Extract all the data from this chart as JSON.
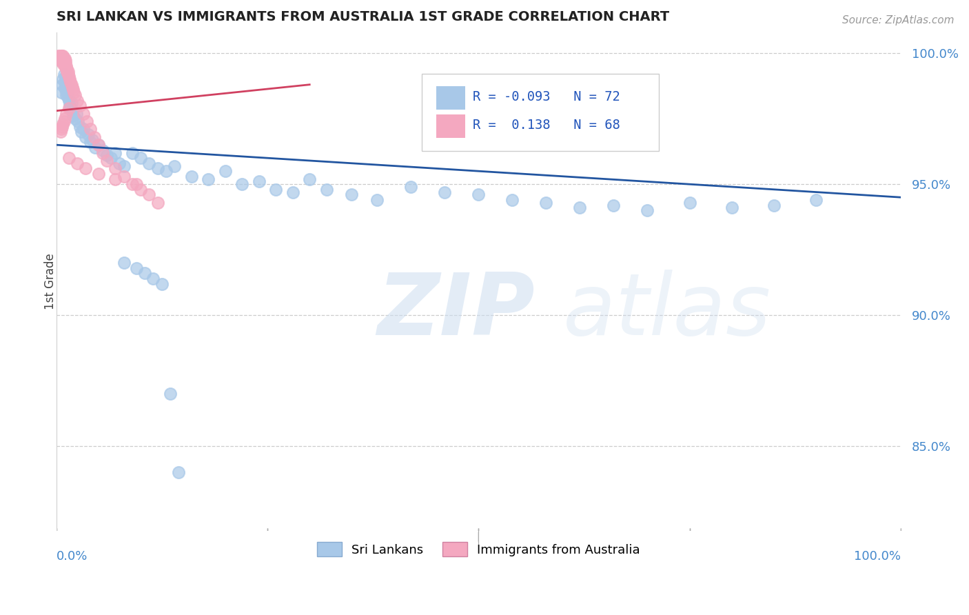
{
  "title": "SRI LANKAN VS IMMIGRANTS FROM AUSTRALIA 1ST GRADE CORRELATION CHART",
  "source": "Source: ZipAtlas.com",
  "ylabel": "1st Grade",
  "xlim": [
    0.0,
    1.0
  ],
  "ylim": [
    0.818,
    1.008
  ],
  "yticks": [
    0.85,
    0.9,
    0.95,
    1.0
  ],
  "ytick_labels": [
    "85.0%",
    "90.0%",
    "95.0%",
    "100.0%"
  ],
  "blue_R": "-0.093",
  "blue_N": "72",
  "pink_R": "0.138",
  "pink_N": "68",
  "blue_color": "#a8c8e8",
  "pink_color": "#f4a8c0",
  "blue_line_color": "#2255a0",
  "pink_line_color": "#d04060",
  "legend_label_blue": "Sri Lankans",
  "legend_label_pink": "Immigrants from Australia",
  "blue_x": [
    0.006,
    0.007,
    0.008,
    0.009,
    0.01,
    0.01,
    0.011,
    0.011,
    0.012,
    0.013,
    0.014,
    0.014,
    0.015,
    0.016,
    0.017,
    0.018,
    0.019,
    0.02,
    0.022,
    0.024,
    0.026,
    0.028,
    0.03,
    0.032,
    0.035,
    0.038,
    0.04,
    0.043,
    0.046,
    0.05,
    0.055,
    0.06,
    0.065,
    0.07,
    0.075,
    0.08,
    0.09,
    0.1,
    0.11,
    0.12,
    0.13,
    0.14,
    0.16,
    0.18,
    0.2,
    0.22,
    0.24,
    0.26,
    0.28,
    0.3,
    0.32,
    0.35,
    0.38,
    0.42,
    0.46,
    0.5,
    0.54,
    0.58,
    0.62,
    0.66,
    0.7,
    0.75,
    0.8,
    0.85,
    0.9,
    0.08,
    0.095,
    0.105,
    0.115,
    0.125,
    0.135,
    0.145
  ],
  "blue_y": [
    0.985,
    0.988,
    0.99,
    0.992,
    0.989,
    0.987,
    0.991,
    0.986,
    0.984,
    0.985,
    0.987,
    0.983,
    0.982,
    0.98,
    0.979,
    0.981,
    0.978,
    0.976,
    0.975,
    0.977,
    0.974,
    0.972,
    0.97,
    0.971,
    0.968,
    0.969,
    0.966,
    0.967,
    0.964,
    0.965,
    0.963,
    0.961,
    0.96,
    0.962,
    0.958,
    0.957,
    0.962,
    0.96,
    0.958,
    0.956,
    0.955,
    0.957,
    0.953,
    0.952,
    0.955,
    0.95,
    0.951,
    0.948,
    0.947,
    0.952,
    0.948,
    0.946,
    0.944,
    0.949,
    0.947,
    0.946,
    0.944,
    0.943,
    0.941,
    0.942,
    0.94,
    0.943,
    0.941,
    0.942,
    0.944,
    0.92,
    0.918,
    0.916,
    0.914,
    0.912,
    0.87,
    0.84
  ],
  "pink_x": [
    0.003,
    0.004,
    0.004,
    0.005,
    0.005,
    0.005,
    0.006,
    0.006,
    0.006,
    0.007,
    0.007,
    0.007,
    0.008,
    0.008,
    0.008,
    0.008,
    0.009,
    0.009,
    0.009,
    0.01,
    0.01,
    0.01,
    0.01,
    0.011,
    0.011,
    0.012,
    0.012,
    0.013,
    0.013,
    0.014,
    0.014,
    0.015,
    0.016,
    0.017,
    0.018,
    0.019,
    0.02,
    0.021,
    0.022,
    0.025,
    0.028,
    0.032,
    0.036,
    0.04,
    0.045,
    0.05,
    0.055,
    0.06,
    0.07,
    0.08,
    0.09,
    0.1,
    0.11,
    0.12,
    0.015,
    0.025,
    0.035,
    0.05,
    0.07,
    0.095,
    0.005,
    0.006,
    0.007,
    0.008,
    0.009,
    0.01,
    0.012,
    0.015
  ],
  "pink_y": [
    0.999,
    0.999,
    0.998,
    0.999,
    0.998,
    0.997,
    0.999,
    0.998,
    0.997,
    0.999,
    0.998,
    0.997,
    0.999,
    0.998,
    0.997,
    0.996,
    0.998,
    0.997,
    0.996,
    0.998,
    0.997,
    0.996,
    0.995,
    0.997,
    0.996,
    0.995,
    0.994,
    0.994,
    0.993,
    0.993,
    0.992,
    0.991,
    0.99,
    0.989,
    0.988,
    0.987,
    0.986,
    0.985,
    0.984,
    0.982,
    0.98,
    0.977,
    0.974,
    0.971,
    0.968,
    0.965,
    0.962,
    0.959,
    0.956,
    0.953,
    0.95,
    0.948,
    0.946,
    0.943,
    0.96,
    0.958,
    0.956,
    0.954,
    0.952,
    0.95,
    0.97,
    0.971,
    0.972,
    0.973,
    0.974,
    0.975,
    0.977,
    0.979
  ],
  "blue_trend_x": [
    0.0,
    1.0
  ],
  "blue_trend_y": [
    0.965,
    0.945
  ],
  "pink_trend_x": [
    0.0,
    0.3
  ],
  "pink_trend_y": [
    0.978,
    0.988
  ]
}
